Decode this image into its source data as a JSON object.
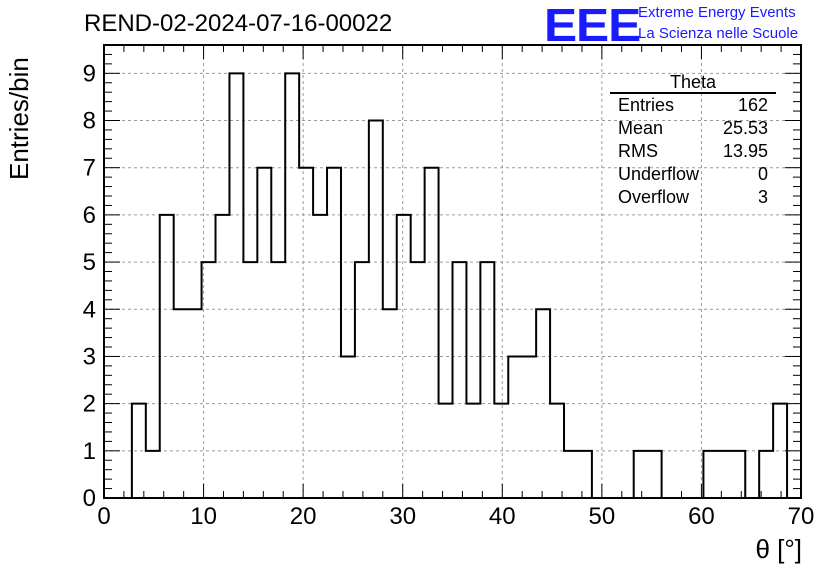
{
  "run_title": "REND-02-2024-07-16-00022",
  "logo": {
    "mark": "EEE",
    "line1": "Extreme Energy Events",
    "line2": "La Scienza nelle Scuole",
    "color": "#1a1aff"
  },
  "stats_box": {
    "title": "Theta",
    "rows": [
      {
        "label": "Entries",
        "value": "162"
      },
      {
        "label": "Mean",
        "value": "25.53"
      },
      {
        "label": "RMS",
        "value": "13.95"
      },
      {
        "label": "Underflow",
        "value": "0"
      },
      {
        "label": "Overflow",
        "value": "3"
      }
    ]
  },
  "chart_data": {
    "type": "histogram",
    "title": "REND-02-2024-07-16-00022",
    "xlabel": "θ [°]",
    "ylabel": "Entries/bin",
    "xlim": [
      0,
      70
    ],
    "ylim": [
      0,
      9.6
    ],
    "bin_width": 1.4,
    "bin_start": 0,
    "values": [
      0,
      0,
      2,
      1,
      6,
      4,
      4,
      5,
      6,
      9,
      5,
      7,
      5,
      9,
      7,
      6,
      7,
      3,
      5,
      8,
      4,
      6,
      5,
      7,
      2,
      5,
      2,
      5,
      2,
      3,
      3,
      4,
      2,
      1,
      1,
      0,
      0,
      0,
      1,
      1,
      0,
      0,
      0,
      1,
      1,
      1,
      0,
      1,
      2,
      0
    ],
    "x_ticks": [
      "0",
      "10",
      "20",
      "30",
      "40",
      "50",
      "60",
      "70"
    ],
    "y_ticks": [
      "0",
      "1",
      "2",
      "3",
      "4",
      "5",
      "6",
      "7",
      "8",
      "9"
    ],
    "grid": true,
    "line_color": "#000000",
    "grid_color": "#9a9a9a"
  }
}
